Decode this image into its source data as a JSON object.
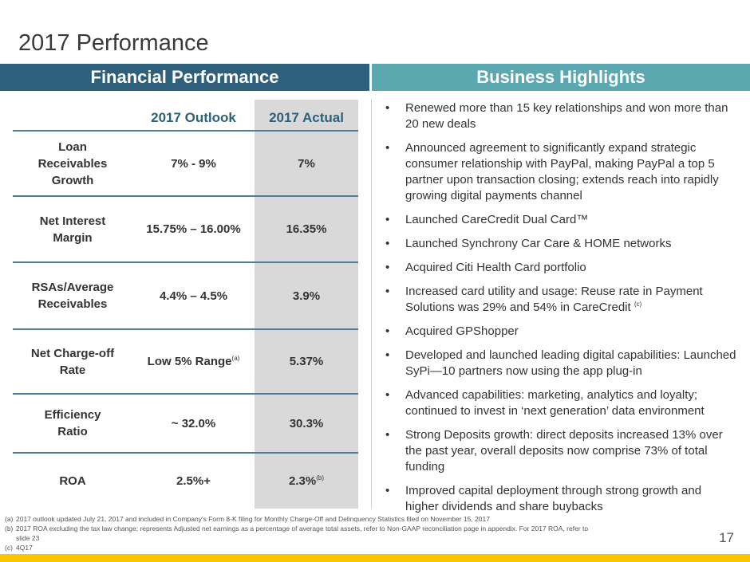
{
  "title": "2017 Performance",
  "left_header": "Financial Performance",
  "right_header": "Business Highlights",
  "table": {
    "columns": [
      "",
      "2017 Outlook",
      "2017 Actual"
    ],
    "rows": [
      {
        "metric": "Loan Receivables Growth",
        "outlook": "7% - 9%",
        "actual": "7%"
      },
      {
        "metric": "Net Interest Margin",
        "outlook": "15.75% – 16.00%",
        "actual": "16.35%"
      },
      {
        "metric": "RSAs/Average Receivables",
        "outlook": "4.4% –  4.5%",
        "actual": "3.9%"
      },
      {
        "metric": "Net Charge-off Rate",
        "outlook": "Low 5% Range",
        "outlook_note": "(a)",
        "actual": "5.37%"
      },
      {
        "metric": "Efficiency Ratio",
        "outlook": "~ 32.0%",
        "actual": "30.3%"
      },
      {
        "metric": "ROA",
        "outlook": "2.5%+",
        "actual": "2.3%",
        "actual_note": "(b)"
      }
    ]
  },
  "highlights": [
    "Renewed more than 15 key relationships and won more than 20 new deals",
    "Announced agreement to significantly expand strategic consumer relationship with PayPal, making PayPal a top 5 partner upon transaction closing; extends reach into rapidly growing digital payments channel",
    "Launched CareCredit Dual Card™",
    "Launched Synchrony Car Care & HOME networks",
    "Acquired Citi Health Card portfolio",
    "Increased card utility and usage: Reuse rate in Payment Solutions was 29% and 54% in CareCredit",
    "Acquired GPShopper",
    "Developed and launched leading digital capabilities: Launched SyPi—10 partners now using the app plug-in",
    "Advanced capabilities: marketing, analytics and loyalty; continued to invest in ‘next generation’ data environment",
    "Strong Deposits growth: direct deposits increased 13% over the past year, overall deposits now comprise 73% of total funding",
    "Improved capital deployment through strong growth and higher dividends and share buybacks"
  ],
  "highlight_note": "(c)",
  "footnotes": [
    {
      "key": "(a)",
      "text": "2017 outlook updated July 21, 2017 and included in Company's Form 8-K filing for Monthly Charge-Off and Delinquency Statistics filed on November 15, 2017"
    },
    {
      "key": "(b)",
      "text": "2017 ROA excluding the tax law change; represents Adjusted net earnings as a percentage of average total assets, refer to Non-GAAP reconciliation page in appendix. For 2017 ROA, refer to slide 23"
    },
    {
      "key": "(c)",
      "text": "4Q17"
    }
  ],
  "page_number": "17",
  "colors": {
    "navy": "#2f607b",
    "teal": "#5ba8b1",
    "yellow": "#fbc600",
    "actual_bg": "#d9d9d9"
  }
}
